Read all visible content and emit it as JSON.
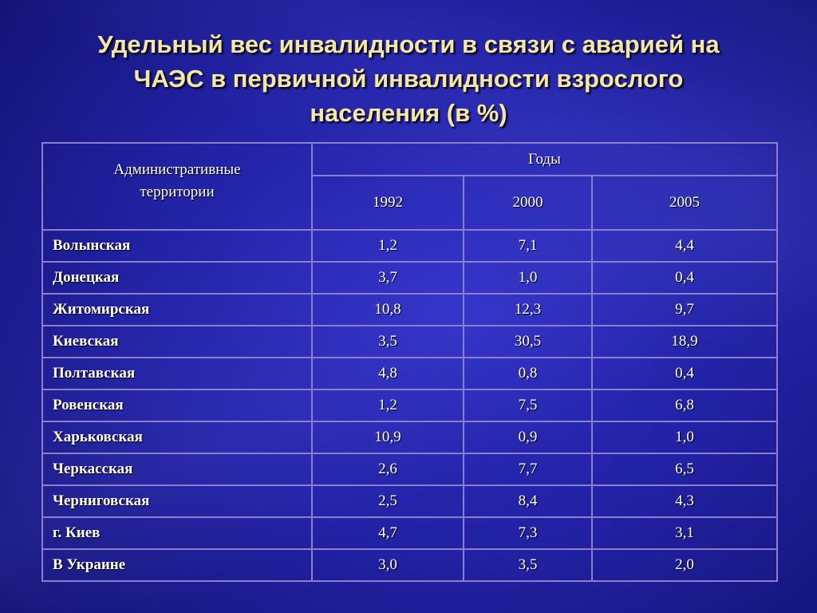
{
  "title": {
    "line1": "Удельный вес инвалидности в связи с аварией на",
    "line2": "ЧАЭС в первичной инвалидности взрослого",
    "line3": "населения (в %)"
  },
  "table": {
    "header_left_line1": "Административные",
    "header_left_line2": "территории",
    "header_group": "Годы",
    "years": [
      "1992",
      "2000",
      "2005"
    ],
    "rows": [
      {
        "name": "Волынская",
        "v1992": "1,2",
        "v2000": "7,1",
        "v2005": "4,4"
      },
      {
        "name": "Донецкая",
        "v1992": "3,7",
        "v2000": "1,0",
        "v2005": "0,4"
      },
      {
        "name": "Житомирская",
        "v1992": "10,8",
        "v2000": "12,3",
        "v2005": "9,7"
      },
      {
        "name": "Киевская",
        "v1992": "3,5",
        "v2000": "30,5",
        "v2005": "18,9"
      },
      {
        "name": "Полтавская",
        "v1992": "4,8",
        "v2000": "0,8",
        "v2005": "0,4"
      },
      {
        "name": "Ровенская",
        "v1992": "1,2",
        "v2000": "7,5",
        "v2005": "6,8"
      },
      {
        "name": "Харьковская",
        "v1992": "10,9",
        "v2000": "0,9",
        "v2005": "1,0"
      },
      {
        "name": "Черкасская",
        "v1992": "2,6",
        "v2000": "7,7",
        "v2005": "6,5"
      },
      {
        "name": "Черниговская",
        "v1992": "2,5",
        "v2000": "8,4",
        "v2005": "4,3"
      },
      {
        "name": "г. Киев",
        "v1992": "4,7",
        "v2000": "7,3",
        "v2005": "3,1"
      },
      {
        "name": "В Украине",
        "v1992": "3,0",
        "v2000": "3,5",
        "v2005": "2,0"
      }
    ]
  },
  "colors": {
    "background": "#2121a3",
    "title_text": "#f3e6a6",
    "table_border": "#8d7dcf",
    "table_text": "#ffffff"
  }
}
